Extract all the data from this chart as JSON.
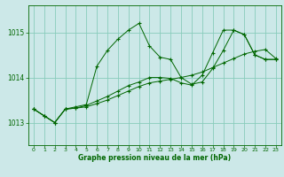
{
  "title": "Graphe pression niveau de la mer (hPa)",
  "bg_color": "#cce8e8",
  "grid_color": "#88ccbb",
  "line_color": "#006600",
  "xlim": [
    -0.5,
    23.5
  ],
  "ylim": [
    1012.5,
    1015.6
  ],
  "yticks": [
    1013,
    1014,
    1015
  ],
  "xticks": [
    0,
    1,
    2,
    3,
    4,
    5,
    6,
    7,
    8,
    9,
    10,
    11,
    12,
    13,
    14,
    15,
    16,
    17,
    18,
    19,
    20,
    21,
    22,
    23
  ],
  "series": [
    [
      1013.3,
      1013.15,
      1013.0,
      1013.3,
      1013.35,
      1013.4,
      1014.25,
      1014.6,
      1014.85,
      1015.05,
      1015.2,
      1014.7,
      1014.45,
      1014.4,
      1014.0,
      1013.85,
      1013.9,
      1014.2,
      1014.6,
      1015.05,
      1014.95,
      1014.5,
      1014.4,
      1014.4
    ],
    [
      1013.3,
      1013.15,
      1013.0,
      1013.3,
      1013.32,
      1013.35,
      1013.42,
      1013.5,
      1013.6,
      1013.7,
      1013.8,
      1013.88,
      1013.92,
      1013.96,
      1014.0,
      1014.05,
      1014.12,
      1014.22,
      1014.32,
      1014.42,
      1014.52,
      1014.58,
      1014.62,
      1014.42
    ],
    [
      1013.3,
      1013.15,
      1013.0,
      1013.3,
      1013.32,
      1013.38,
      1013.48,
      1013.58,
      1013.7,
      1013.82,
      1013.9,
      1014.0,
      1014.0,
      1013.98,
      1013.88,
      1013.83,
      1014.05,
      1014.55,
      1015.05,
      1015.05,
      1014.95,
      1014.5,
      1014.4,
      1014.4
    ]
  ]
}
